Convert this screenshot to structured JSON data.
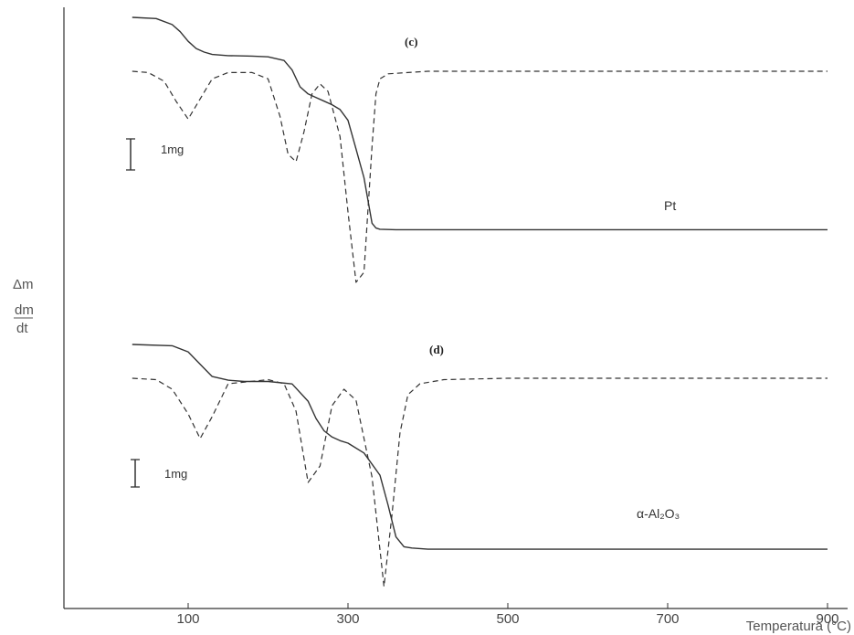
{
  "chart_data": {
    "type": "line",
    "xlabel": "Temperatura (°C)",
    "ylabel_top": "Δm",
    "ylabel_frac_num": "dm",
    "ylabel_frac_den": "dt",
    "x_ticks": [
      100,
      300,
      500,
      700,
      900
    ],
    "xlim": [
      0,
      920
    ],
    "panels": [
      {
        "label": "(c)",
        "sample": "Pt",
        "scale_label": "1mg",
        "series": [
          {
            "kind": "TG",
            "style": "solid",
            "x": [
              30,
              60,
              80,
              90,
              100,
              110,
              120,
              130,
              150,
              180,
              200,
              220,
              230,
              240,
              250,
              260,
              270,
              280,
              290,
              300,
              310,
              320,
              330,
              335,
              340,
              360,
              400,
              500,
              700,
              900
            ],
            "y": [
              0,
              0.05,
              0.3,
              0.6,
              1.0,
              1.3,
              1.45,
              1.55,
              1.6,
              1.62,
              1.65,
              1.8,
              2.2,
              2.9,
              3.2,
              3.35,
              3.5,
              3.65,
              3.85,
              4.3,
              5.5,
              6.7,
              8.6,
              8.8,
              8.85,
              8.87,
              8.87,
              8.87,
              8.87,
              8.87
            ]
          },
          {
            "kind": "DTG",
            "style": "dashed",
            "x": [
              30,
              50,
              70,
              85,
              100,
              115,
              130,
              150,
              180,
              200,
              215,
              225,
              235,
              245,
              255,
              265,
              275,
              290,
              300,
              310,
              320,
              330,
              335,
              340,
              350,
              400,
              500,
              700,
              900
            ],
            "y": [
              0,
              0.05,
              0.4,
              1.2,
              1.9,
              1.1,
              0.3,
              0.05,
              0.05,
              0.3,
              1.8,
              3.3,
              3.6,
              2.4,
              0.9,
              0.5,
              0.8,
              2.6,
              5.6,
              8.4,
              8.0,
              3.0,
              0.9,
              0.3,
              0.1,
              0,
              0,
              0,
              0
            ]
          }
        ]
      },
      {
        "label": "(d)",
        "sample": "α-Al₂O₃",
        "scale_label": "1mg",
        "series": [
          {
            "kind": "TG",
            "style": "solid",
            "x": [
              30,
              80,
              100,
              115,
              130,
              150,
              170,
              200,
              230,
              250,
              260,
              270,
              280,
              290,
              300,
              320,
              340,
              350,
              360,
              370,
              380,
              400,
              500,
              700,
              900
            ],
            "y": [
              0,
              0.05,
              0.3,
              0.8,
              1.3,
              1.45,
              1.5,
              1.5,
              1.6,
              2.3,
              3.0,
              3.5,
              3.75,
              3.9,
              4.0,
              4.4,
              5.3,
              6.5,
              7.8,
              8.2,
              8.25,
              8.3,
              8.3,
              8.3,
              8.3
            ]
          },
          {
            "kind": "DTG",
            "style": "dashed",
            "x": [
              30,
              60,
              80,
              100,
              115,
              130,
              150,
              200,
              220,
              235,
              250,
              265,
              280,
              295,
              310,
              330,
              345,
              355,
              365,
              375,
              390,
              420,
              500,
              700,
              900
            ],
            "y": [
              0,
              0.05,
              0.4,
              1.3,
              2.2,
              1.4,
              0.2,
              0.05,
              0.2,
              1.2,
              3.8,
              3.2,
              1.0,
              0.4,
              0.8,
              3.6,
              7.6,
              5.0,
              2.0,
              0.6,
              0.2,
              0.05,
              0,
              0,
              0
            ]
          }
        ]
      }
    ],
    "grid": false,
    "legend": "none"
  }
}
